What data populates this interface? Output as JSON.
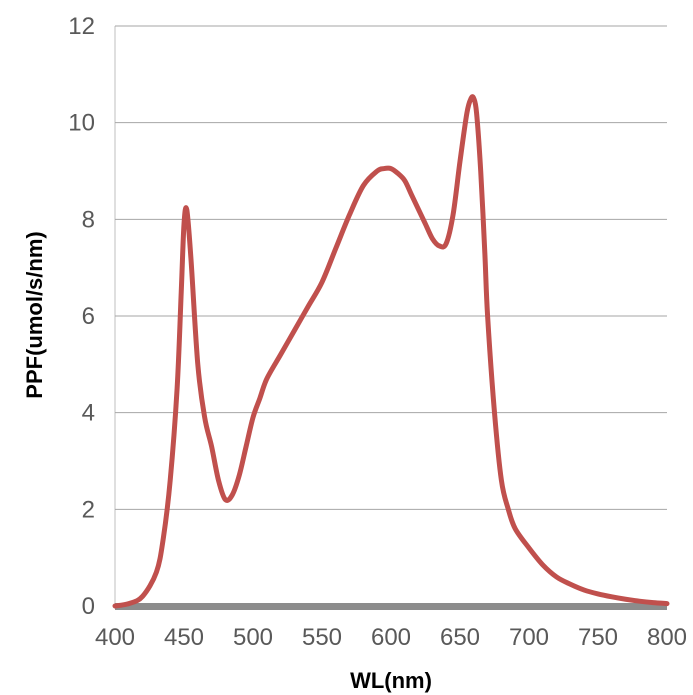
{
  "chart_data": {
    "type": "line",
    "title": "",
    "xlabel": "WL(nm)",
    "ylabel": "PPF(umol/s/nm)",
    "xlim": [
      400,
      800
    ],
    "ylim": [
      0,
      12
    ],
    "xticks": [
      400,
      450,
      500,
      550,
      600,
      650,
      700,
      750,
      800
    ],
    "yticks": [
      0,
      2,
      4,
      6,
      8,
      10,
      12
    ],
    "grid": "horizontal",
    "legend": "none",
    "baseline_color": "#8c8c8c",
    "series": [
      {
        "color": "#c0504d",
        "x": [
          400,
          410,
          420,
          430,
          435,
          440,
          445,
          448,
          450,
          452,
          455,
          460,
          465,
          470,
          475,
          480,
          485,
          490,
          495,
          500,
          505,
          510,
          520,
          530,
          540,
          550,
          560,
          570,
          580,
          590,
          595,
          600,
          605,
          610,
          615,
          620,
          625,
          630,
          635,
          640,
          645,
          650,
          655,
          658,
          660,
          662,
          665,
          668,
          670,
          675,
          680,
          685,
          690,
          700,
          710,
          720,
          730,
          740,
          750,
          760,
          770,
          780,
          790,
          800
        ],
        "y": [
          0.0,
          0.05,
          0.2,
          0.7,
          1.4,
          2.6,
          4.5,
          6.5,
          7.9,
          8.2,
          7.2,
          5.0,
          3.9,
          3.3,
          2.6,
          2.2,
          2.3,
          2.7,
          3.3,
          3.9,
          4.3,
          4.7,
          5.2,
          5.7,
          6.2,
          6.7,
          7.4,
          8.1,
          8.7,
          9.0,
          9.05,
          9.05,
          8.95,
          8.8,
          8.5,
          8.2,
          7.9,
          7.6,
          7.45,
          7.5,
          8.1,
          9.2,
          10.2,
          10.5,
          10.5,
          10.2,
          9.0,
          7.3,
          6.0,
          4.0,
          2.6,
          2.0,
          1.6,
          1.2,
          0.85,
          0.6,
          0.45,
          0.33,
          0.25,
          0.19,
          0.14,
          0.1,
          0.07,
          0.05
        ]
      }
    ]
  }
}
